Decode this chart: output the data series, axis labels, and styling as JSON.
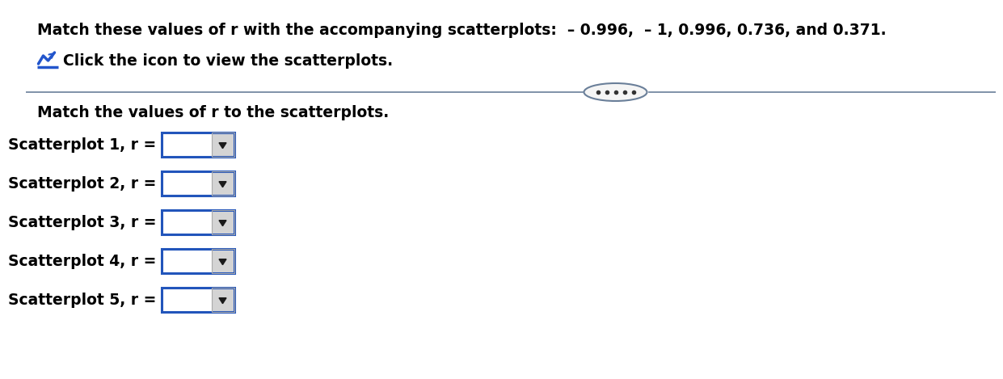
{
  "title_line1": "Match these values of r with the accompanying scatterplots:  – 0.996,  – 1, 0.996, 0.736, and 0.371.",
  "title_line2": "Click the icon to view the scatterplots.",
  "instruction": "Match the values of r to the scatterplots.",
  "scatterplot_labels": [
    "Scatterplot 1, r =",
    "Scatterplot 2, r =",
    "Scatterplot 3, r =",
    "Scatterplot 4, r =",
    "Scatterplot 5, r ="
  ],
  "bg_color": "#ffffff",
  "text_color": "#000000",
  "box_border_color": "#2255bb",
  "box_fill_color": "#ffffff",
  "arrow_bg_color": "#d4d4d4",
  "arrow_border_color": "#aaaaaa",
  "divider_line_color": "#6a7f99",
  "oval_fill_color": "#f5f5f5",
  "oval_border_color": "#6a7f99",
  "dots_color": "#333333",
  "icon_color": "#2255cc",
  "title_fontsize": 13.5,
  "label_fontsize": 13.5,
  "instruction_fontsize": 13.5
}
